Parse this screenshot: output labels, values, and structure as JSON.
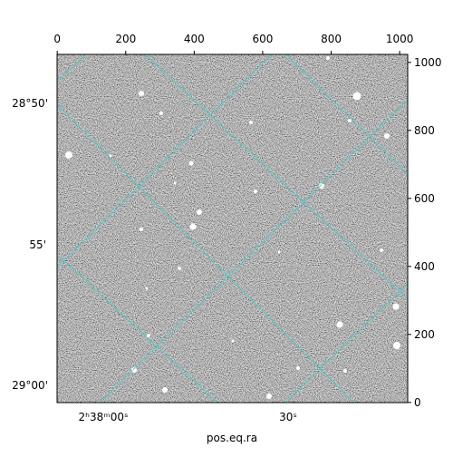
{
  "chart_data": {
    "type": "image",
    "xlabel": "pos.eq.ra",
    "xlim": [
      -0.5,
      1023.5
    ],
    "ylim": [
      -0.5,
      1023.5
    ],
    "xticks": [
      0,
      200,
      400,
      600,
      800,
      1000
    ],
    "yticks": [
      0,
      200,
      400,
      600,
      800,
      1000
    ],
    "wcs_x_labels": [
      "2ʰ38ᵐ00ˢ",
      "30ˢ"
    ],
    "wcs_y_labels": [
      "28°50'",
      "55'",
      "29°00'"
    ]
  }
}
